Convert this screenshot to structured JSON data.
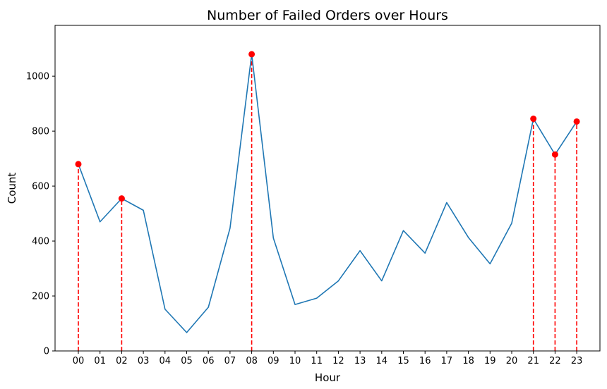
{
  "chart_data": {
    "type": "line",
    "title": "Number of Failed Orders over Hours",
    "xlabel": "Hour",
    "ylabel": "Count",
    "categories": [
      "00",
      "01",
      "02",
      "03",
      "04",
      "05",
      "06",
      "07",
      "08",
      "09",
      "10",
      "11",
      "12",
      "13",
      "14",
      "15",
      "16",
      "17",
      "18",
      "19",
      "20",
      "21",
      "22",
      "23"
    ],
    "values": [
      680,
      470,
      555,
      512,
      152,
      67,
      159,
      447,
      1080,
      411,
      169,
      192,
      255,
      365,
      255,
      438,
      356,
      540,
      413,
      317,
      465,
      845,
      715,
      835
    ],
    "highlighted_categories": [
      "00",
      "02",
      "08",
      "21",
      "22",
      "23"
    ],
    "ylim": [
      0,
      1185
    ],
    "yticks": [
      0,
      200,
      400,
      600,
      800,
      1000
    ],
    "grid": false,
    "colors": {
      "line": "#1f77b4",
      "highlight_marker": "#ff0000",
      "highlight_stem": "#ff0000"
    }
  }
}
